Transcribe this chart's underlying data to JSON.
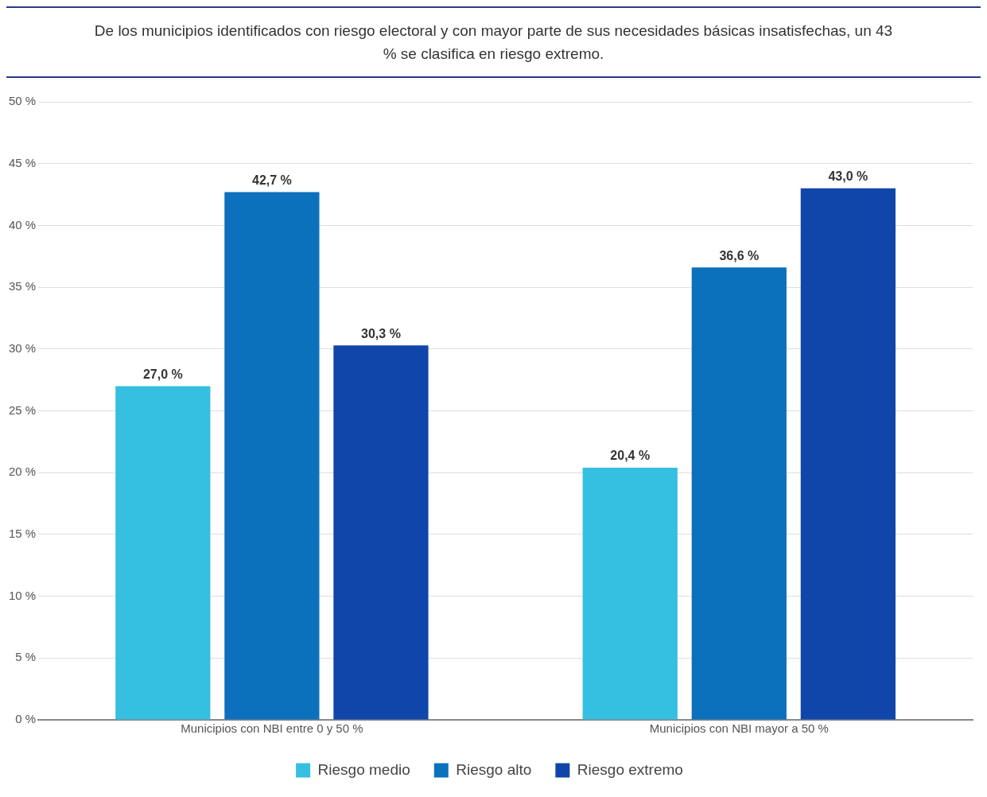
{
  "chart_data": {
    "type": "bar",
    "title": "De los municipios identificados con riesgo electoral y con mayor parte de sus necesidades básicas insatisfechas, un 43 % se clasifica en riesgo extremo.",
    "categories": [
      "Municipios con NBI entre 0 y 50 %",
      "Municipios con NBI mayor a 50 %"
    ],
    "series": [
      {
        "name": "Riesgo medio",
        "color": "#35bfe0",
        "values": [
          27.0,
          20.4
        ],
        "value_labels": [
          "27,0 %",
          "20,4 %"
        ]
      },
      {
        "name": "Riesgo alto",
        "color": "#0c71bc",
        "values": [
          42.7,
          36.6
        ],
        "value_labels": [
          "42,7 %",
          "36,6 %"
        ]
      },
      {
        "name": "Riesgo extremo",
        "color": "#1046aa",
        "values": [
          30.3,
          43.0
        ],
        "value_labels": [
          "30,3 %",
          "43,0 %"
        ]
      }
    ],
    "ylim": [
      0,
      50
    ],
    "yticks": [
      {
        "value": 0,
        "label": "0 %"
      },
      {
        "value": 5,
        "label": "5 %"
      },
      {
        "value": 10,
        "label": "10 %"
      },
      {
        "value": 15,
        "label": "15 %"
      },
      {
        "value": 20,
        "label": "20 %"
      },
      {
        "value": 25,
        "label": "25 %"
      },
      {
        "value": 30,
        "label": "30 %"
      },
      {
        "value": 35,
        "label": "35 %"
      },
      {
        "value": 40,
        "label": "40 %"
      },
      {
        "value": 45,
        "label": "45 %"
      },
      {
        "value": 50,
        "label": "50 %"
      }
    ],
    "grid": "y",
    "legend": "bottom"
  }
}
